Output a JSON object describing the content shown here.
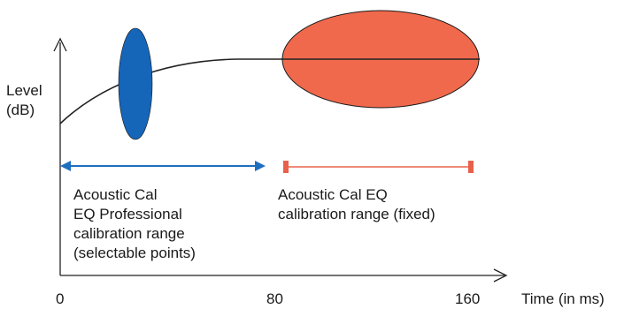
{
  "axes": {
    "y_label_line1": "Level",
    "y_label_line2": "(dB)",
    "x_label": "Time (in ms)",
    "x_ticks": [
      "0",
      "80",
      "160"
    ]
  },
  "professional_range": {
    "label_lines": [
      "Acoustic Cal",
      "EQ Professional",
      "calibration range",
      "(selectable points)"
    ],
    "color": "#1f6fbf"
  },
  "fixed_range": {
    "label_lines": [
      "Acoustic Cal EQ",
      "calibration range (fixed)"
    ],
    "color": "#e8604a"
  },
  "ellipses": {
    "blue_color": "#1565b8",
    "orange_color": "#f0694c"
  }
}
